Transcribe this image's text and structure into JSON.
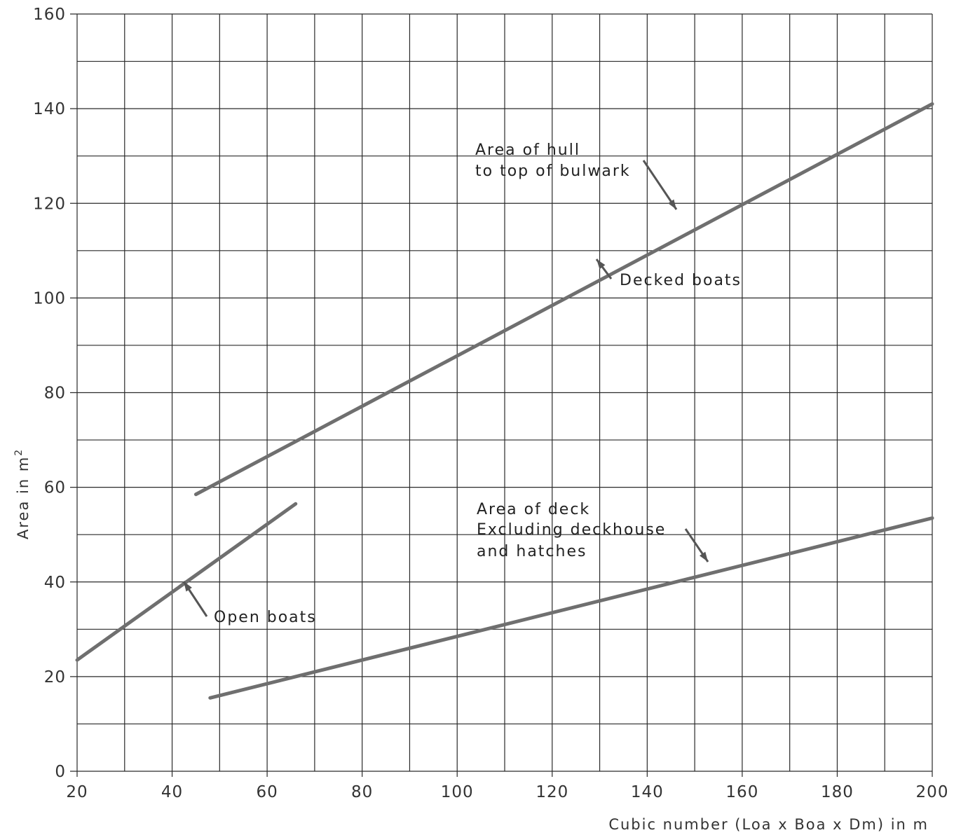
{
  "chart_data": {
    "type": "line",
    "xlabel": "Cubic number (Loa x Boa x Dm) in m",
    "ylabel": "Area in m",
    "ylabel_superscript": "2",
    "xlim": [
      20,
      200
    ],
    "ylim": [
      0,
      160
    ],
    "x_ticks": [
      20,
      40,
      60,
      80,
      100,
      120,
      140,
      160,
      180,
      200
    ],
    "y_ticks": [
      0,
      20,
      40,
      60,
      80,
      100,
      120,
      140,
      160
    ],
    "x_minor_step": 10,
    "y_minor_step": 10,
    "grid": true,
    "series": [
      {
        "name": "Decked boats",
        "x": [
          45,
          200
        ],
        "y": [
          58.5,
          141
        ]
      },
      {
        "name": "Open boats",
        "x": [
          20,
          66
        ],
        "y": [
          23.5,
          56.5
        ]
      },
      {
        "name": "Area of deck Excluding deckhouse and hatches",
        "x": [
          48,
          200
        ],
        "y": [
          15.5,
          53.5
        ]
      }
    ],
    "annotations": [
      {
        "lines": [
          "Area of hull",
          "to top of bulwark"
        ]
      },
      {
        "lines": [
          "Decked boats"
        ]
      },
      {
        "lines": [
          "Area of deck",
          "Excluding deckhouse",
          "and hatches"
        ]
      },
      {
        "lines": [
          "Open boats"
        ]
      }
    ]
  }
}
